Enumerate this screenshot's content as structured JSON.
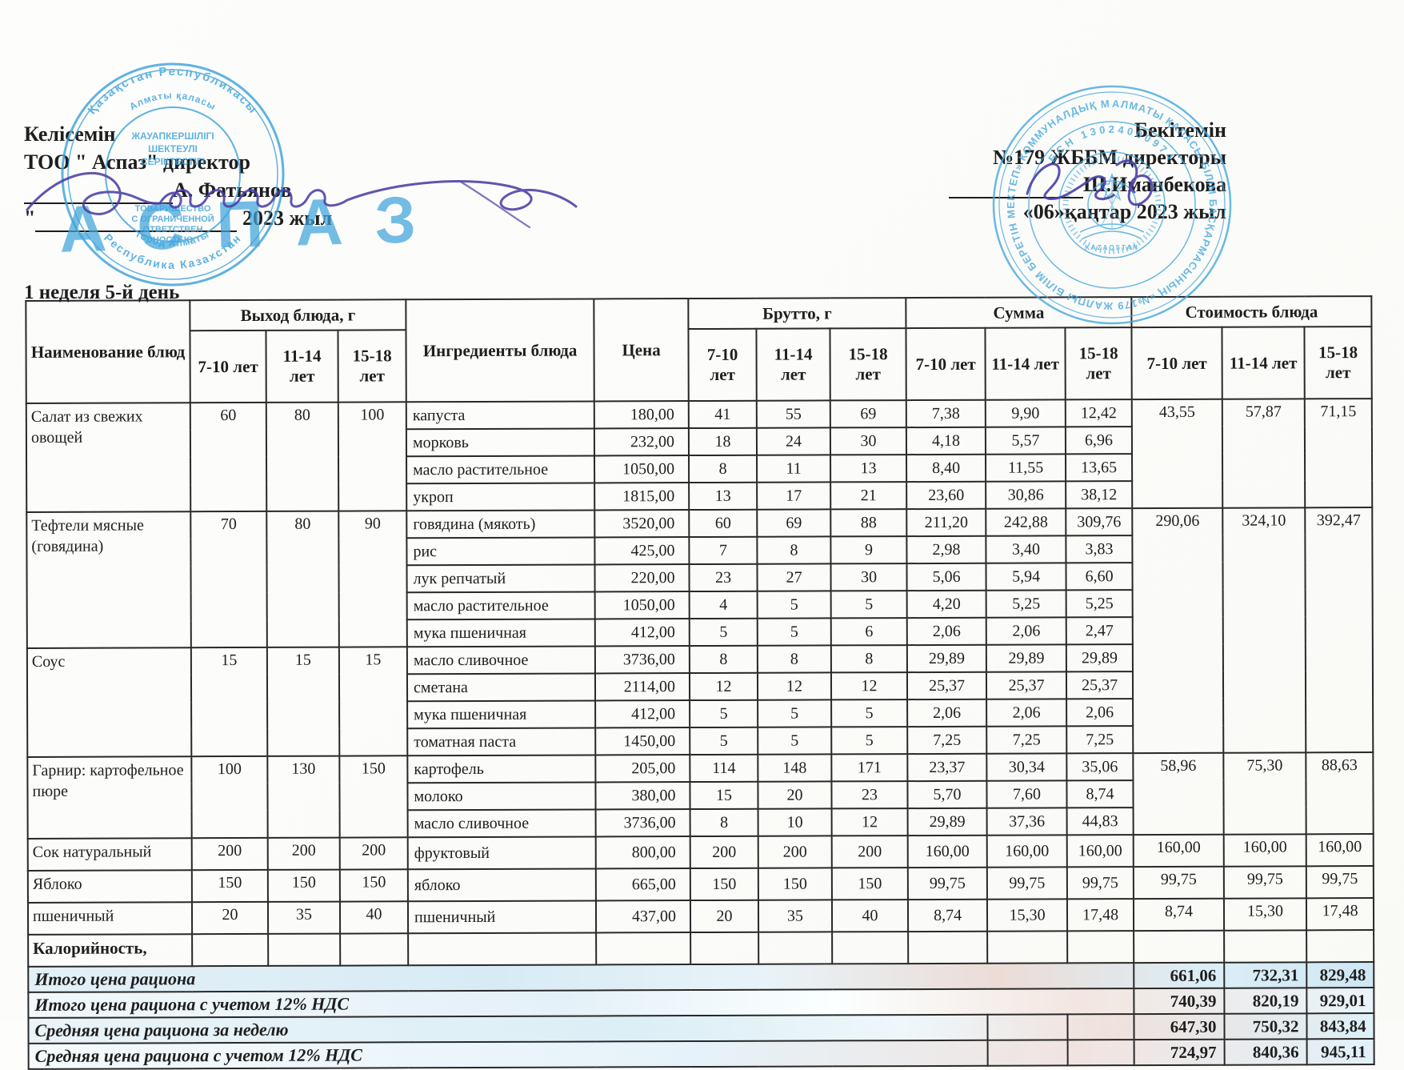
{
  "approval": {
    "left": {
      "approve_word": "Келісемін",
      "org_line": "ТОО \" Аспаз\" директор",
      "signatory": "А. Фатьянов",
      "quote": "\"",
      "year_suffix": "2023 жыл"
    },
    "right": {
      "approve_word": "Бекітемін",
      "org_line": "№179 ЖББМ директоры",
      "signatory": "Ш.Иманбекова",
      "date_line": "«06»қаңтар 2023 жыл"
    }
  },
  "week_day_label": "1 неделя 5-й день",
  "stamps": {
    "aspaz": {
      "ring_outer_top": "Қазақстан Республикасы",
      "ring_outer_bottom": "Республика Казахстан",
      "ring_inner_top": "Алматы қаласы",
      "ring_inner_bottom": "город Алматы",
      "line1": "ЖАУАПКЕРШІЛІГІ",
      "line2": "ШЕКТЕУЛІ",
      "line3": "СЕРІКТЕСТІГІ",
      "big_name": "АСПАЗ",
      "llc1": "ТОВАРИЩЕСТВО",
      "llc2": "С ОГРАНИЧЕННОЙ",
      "llc3": "ОТВЕТСТВЕН",
      "llc4": "НОСТЬЮ"
    },
    "school": {
      "ring_text": "АЛМАТЫ ҚАЛАСЫ БІЛІМ БАСҚАРМАСЫНЫҢ «№179 ЖАЛПЫ БІЛІМ БЕРЕТІН МЕКТЕП» КОММУНАЛДЫҚ МЕМЛЕКЕТТІК МЕКЕМЕСІ  ✳",
      "bsn": "БСН 13024000974",
      "country": "KAZAQSTAN"
    }
  },
  "table": {
    "headers": {
      "name": "Наименование блюд",
      "out_group": "Выход блюда, г",
      "ingredients": "Ингредиенты блюда",
      "price": "Цена",
      "brutto_group": "Брутто, г",
      "sum_group": "Сумма",
      "cost_group": "Стоимость блюда",
      "age1": "7-10 лет",
      "age2": "11-14 лет",
      "age3": "15-18 лет"
    },
    "dishes": [
      {
        "name": "Салат из свежих овощей",
        "out": [
          "60",
          "80",
          "100"
        ],
        "cost": [
          "43,55",
          "57,87",
          "71,15"
        ],
        "cost_rowspan": 4,
        "ingredients": [
          {
            "name": "капуста",
            "price": "180,00",
            "brutto": [
              "41",
              "55",
              "69"
            ],
            "sum": [
              "7,38",
              "9,90",
              "12,42"
            ]
          },
          {
            "name": "морковь",
            "price": "232,00",
            "brutto": [
              "18",
              "24",
              "30"
            ],
            "sum": [
              "4,18",
              "5,57",
              "6,96"
            ]
          },
          {
            "name": "масло растительное",
            "price": "1050,00",
            "brutto": [
              "8",
              "11",
              "13"
            ],
            "sum": [
              "8,40",
              "11,55",
              "13,65"
            ]
          },
          {
            "name": "укроп",
            "price": "1815,00",
            "brutto": [
              "13",
              "17",
              "21"
            ],
            "sum": [
              "23,60",
              "30,86",
              "38,12"
            ]
          }
        ]
      },
      {
        "name": "Тефтели мясные (говядина)",
        "out": [
          "70",
          "80",
          "90"
        ],
        "cost": [
          "290,06",
          "324,10",
          "392,47"
        ],
        "cost_rowspan": 9,
        "ingredients": [
          {
            "name": "говядина (мякоть)",
            "price": "3520,00",
            "brutto": [
              "60",
              "69",
              "88"
            ],
            "sum": [
              "211,20",
              "242,88",
              "309,76"
            ]
          },
          {
            "name": "рис",
            "price": "425,00",
            "brutto": [
              "7",
              "8",
              "9"
            ],
            "sum": [
              "2,98",
              "3,40",
              "3,83"
            ]
          },
          {
            "name": "лук репчатый",
            "price": "220,00",
            "brutto": [
              "23",
              "27",
              "30"
            ],
            "sum": [
              "5,06",
              "5,94",
              "6,60"
            ]
          },
          {
            "name": "масло растительное",
            "price": "1050,00",
            "brutto": [
              "4",
              "5",
              "5"
            ],
            "sum": [
              "4,20",
              "5,25",
              "5,25"
            ]
          },
          {
            "name": "мука пшеничная",
            "price": "412,00",
            "brutto": [
              "5",
              "5",
              "6"
            ],
            "sum": [
              "2,06",
              "2,06",
              "2,47"
            ]
          }
        ]
      },
      {
        "name": "Соус",
        "out": [
          "15",
          "15",
          "15"
        ],
        "cost": null,
        "cost_rowspan": 0,
        "ingredients": [
          {
            "name": "масло сливочное",
            "price": "3736,00",
            "brutto": [
              "8",
              "8",
              "8"
            ],
            "sum": [
              "29,89",
              "29,89",
              "29,89"
            ]
          },
          {
            "name": "сметана",
            "price": "2114,00",
            "brutto": [
              "12",
              "12",
              "12"
            ],
            "sum": [
              "25,37",
              "25,37",
              "25,37"
            ]
          },
          {
            "name": "мука пшеничная",
            "price": "412,00",
            "brutto": [
              "5",
              "5",
              "5"
            ],
            "sum": [
              "2,06",
              "2,06",
              "2,06"
            ]
          },
          {
            "name": "томатная паста",
            "price": "1450,00",
            "brutto": [
              "5",
              "5",
              "5"
            ],
            "sum": [
              "7,25",
              "7,25",
              "7,25"
            ]
          }
        ]
      },
      {
        "name": "Гарнир: картофельное пюре",
        "out": [
          "100",
          "130",
          "150"
        ],
        "cost": [
          "58,96",
          "75,30",
          "88,63"
        ],
        "cost_rowspan": 3,
        "ingredients": [
          {
            "name": "картофель",
            "price": "205,00",
            "brutto": [
              "114",
              "148",
              "171"
            ],
            "sum": [
              "23,37",
              "30,34",
              "35,06"
            ]
          },
          {
            "name": "молоко",
            "price": "380,00",
            "brutto": [
              "15",
              "20",
              "23"
            ],
            "sum": [
              "5,70",
              "7,60",
              "8,74"
            ]
          },
          {
            "name": "масло сливочное",
            "price": "3736,00",
            "brutto": [
              "8",
              "10",
              "12"
            ],
            "sum": [
              "29,89",
              "37,36",
              "44,83"
            ]
          }
        ]
      },
      {
        "name": "Сок натуральный",
        "out": [
          "200",
          "200",
          "200"
        ],
        "cost": [
          "160,00",
          "160,00",
          "160,00"
        ],
        "cost_rowspan": 1,
        "ingredients": [
          {
            "name": "фруктовый",
            "price": "800,00",
            "brutto": [
              "200",
              "200",
              "200"
            ],
            "sum": [
              "160,00",
              "160,00",
              "160,00"
            ]
          }
        ]
      },
      {
        "name": "Яблоко",
        "out": [
          "150",
          "150",
          "150"
        ],
        "cost": [
          "99,75",
          "99,75",
          "99,75"
        ],
        "cost_rowspan": 1,
        "ingredients": [
          {
            "name": "яблоко",
            "price": "665,00",
            "brutto": [
              "150",
              "150",
              "150"
            ],
            "sum": [
              "99,75",
              "99,75",
              "99,75"
            ]
          }
        ]
      },
      {
        "name": "пшеничный",
        "out": [
          "20",
          "35",
          "40"
        ],
        "cost": [
          "8,74",
          "15,30",
          "17,48"
        ],
        "cost_rowspan": 1,
        "ingredients": [
          {
            "name": "пшеничный",
            "price": "437,00",
            "brutto": [
              "20",
              "35",
              "40"
            ],
            "sum": [
              "8,74",
              "15,30",
              "17,48"
            ]
          }
        ]
      },
      {
        "name": "Калорийность,",
        "bold": true,
        "out": [
          "",
          "",
          ""
        ],
        "cost": [
          "",
          "",
          ""
        ],
        "cost_rowspan": 1,
        "ingredients": [
          {
            "name": "",
            "price": "",
            "brutto": [
              "",
              "",
              ""
            ],
            "sum": [
              "",
              "",
              ""
            ]
          }
        ]
      }
    ],
    "summary": [
      {
        "label": "Итого цена рациона",
        "label_colspan": 12,
        "mid_cells": 0,
        "values": [
          "661,06",
          "732,31",
          "829,48"
        ]
      },
      {
        "label": "Итого цена рациона с учетом 12% НДС",
        "label_colspan": 12,
        "mid_cells": 0,
        "values": [
          "740,39",
          "820,19",
          "929,01"
        ]
      },
      {
        "label": "Средняя цена рациона за неделю",
        "label_colspan": 10,
        "mid_cells": 2,
        "values": [
          "647,30",
          "750,32",
          "843,84"
        ]
      },
      {
        "label": "Средняя цена рациона с учетом 12% НДС",
        "label_colspan": 10,
        "mid_cells": 2,
        "values": [
          "724,97",
          "840,36",
          "945,11"
        ]
      }
    ]
  }
}
